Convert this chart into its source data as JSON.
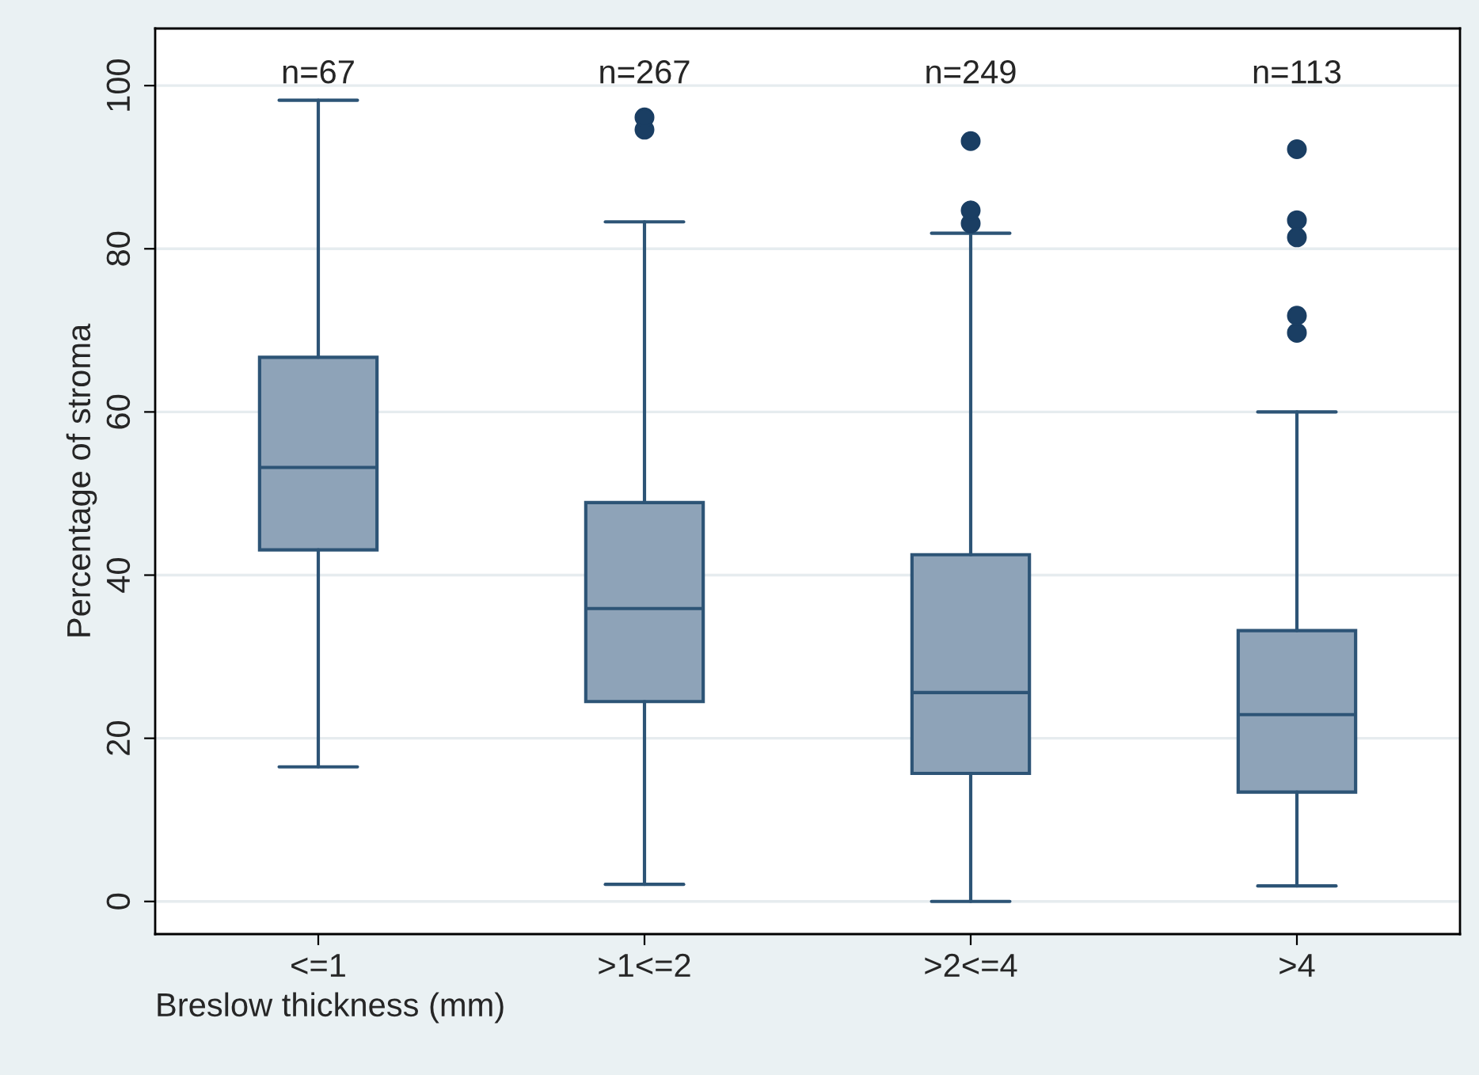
{
  "chart_data": {
    "type": "box",
    "ylabel": "Percentage of stroma",
    "xlabel": "Breslow thickness (mm)",
    "categories": [
      "<=1",
      ">1<=2",
      ">2<=4",
      ">4"
    ],
    "color": "#8ea3b8",
    "boxes": [
      {
        "low": 16.5,
        "q1": 43.1,
        "median": 53.2,
        "q3": 66.7,
        "high": 98.2
      },
      {
        "low": 2.1,
        "q1": 24.5,
        "median": 35.9,
        "q3": 48.9,
        "high": 83.3,
        "outliers": [
          94.6,
          96.1
        ]
      },
      {
        "low": 0,
        "q1": 15.7,
        "median": 25.6,
        "q3": 42.5,
        "high": 81.9,
        "outliers": [
          83.1,
          84.7,
          93.2
        ]
      },
      {
        "low": 1.9,
        "q1": 13.4,
        "median": 22.9,
        "q3": 33.2,
        "high": 60,
        "outliers": [
          69.7,
          71.8,
          81.4,
          83.5,
          92.2
        ]
      }
    ],
    "ylim": [
      -4,
      107
    ],
    "yticks": [
      0,
      20,
      40,
      60,
      80,
      100
    ],
    "grid": "y",
    "annotations": [
      "n=67",
      "n=267",
      "n=249",
      "n=113"
    ]
  }
}
